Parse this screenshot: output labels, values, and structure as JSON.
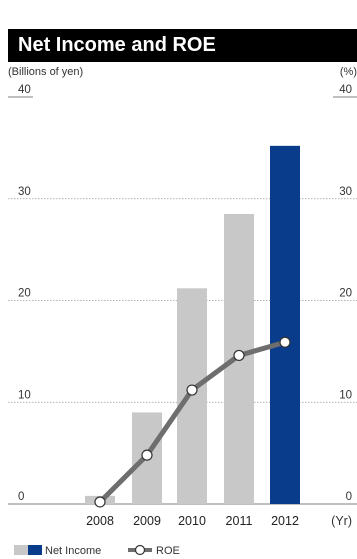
{
  "title": "Net Income and ROE",
  "left_unit": "(Billions of yen)",
  "right_unit": "(%)",
  "chart_data": {
    "type": "bar",
    "categories": [
      "2008",
      "2009",
      "2010",
      "2011",
      "2012"
    ],
    "x_unit_label": "(Yr)",
    "series": [
      {
        "name": "Net Income",
        "kind": "bar",
        "axis": "left",
        "values": [
          0.8,
          9.0,
          21.2,
          28.5,
          35.2
        ]
      },
      {
        "name": "ROE",
        "kind": "line",
        "axis": "right",
        "values": [
          0.2,
          4.8,
          11.2,
          14.6,
          15.9
        ]
      }
    ],
    "ylim_left": [
      0,
      40
    ],
    "ylim_right": [
      0,
      40
    ],
    "y_ticks": [
      0,
      10,
      20,
      30,
      40
    ],
    "grid": true,
    "legend_position": "bottom-left",
    "colors": {
      "bar": "#c8c8c8",
      "bar_highlight": "#0a3c8c",
      "line": "#6e6e6e",
      "marker_fill": "#ffffff",
      "marker_stroke": "#333333",
      "title_bg": "#000000"
    }
  }
}
